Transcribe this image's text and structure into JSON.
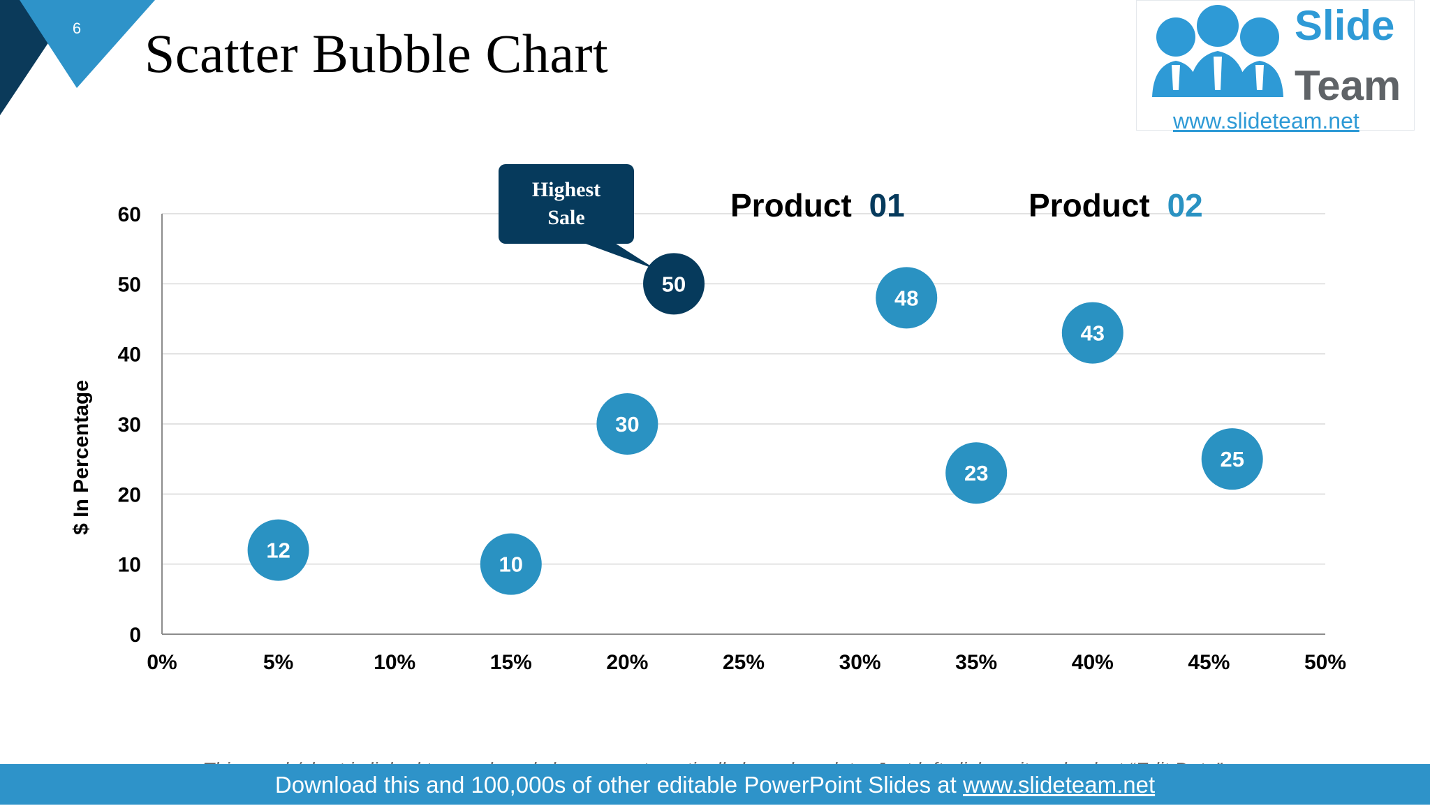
{
  "slide": {
    "number": "6",
    "title": "Scatter Bubble Chart"
  },
  "logo": {
    "line1": "Slide",
    "line2": "Team",
    "url": "www.slideteam.net"
  },
  "colors": {
    "accent": "#2a92c2",
    "dark": "#063a5c",
    "corner_light": "#2e93c9",
    "corner_dark": "#0b3a5a",
    "grid": "#d9d9d9",
    "footer": "#2e93c9"
  },
  "chart_data": {
    "type": "scatter",
    "title": "Scatter Bubble Chart",
    "xlabel": "",
    "ylabel": "$ In Percentage",
    "xlim": [
      0,
      50
    ],
    "ylim": [
      0,
      60
    ],
    "x_ticks": [
      "0%",
      "5%",
      "10%",
      "15%",
      "20%",
      "25%",
      "30%",
      "35%",
      "40%",
      "45%",
      "50%"
    ],
    "y_ticks": [
      "0",
      "10",
      "20",
      "30",
      "40",
      "50",
      "60"
    ],
    "grid": true,
    "points": [
      {
        "x": 5,
        "y": 12,
        "label": "12",
        "highlight": false
      },
      {
        "x": 15,
        "y": 10,
        "label": "10",
        "highlight": false
      },
      {
        "x": 20,
        "y": 30,
        "label": "30",
        "highlight": false
      },
      {
        "x": 22,
        "y": 50,
        "label": "50",
        "highlight": true
      },
      {
        "x": 32,
        "y": 48,
        "label": "48",
        "highlight": false
      },
      {
        "x": 35,
        "y": 23,
        "label": "23",
        "highlight": false
      },
      {
        "x": 40,
        "y": 43,
        "label": "43",
        "highlight": false
      },
      {
        "x": 46,
        "y": 25,
        "label": "25",
        "highlight": false
      }
    ],
    "callout": {
      "line1": "Highest",
      "line2": "Sale"
    },
    "legend": [
      {
        "name": "Product",
        "number": "01",
        "color": "#063a5c"
      },
      {
        "name": "Product",
        "number": "02",
        "color": "#2a92c2"
      }
    ]
  },
  "note": "This graph/chart is linked to excel, and changes automatically based on data. Just left click on it and select “Edit Data”.",
  "footer": {
    "prefix": "Download this and 100,000s of other editable PowerPoint Slides at ",
    "link": "www.slideteam.net"
  }
}
